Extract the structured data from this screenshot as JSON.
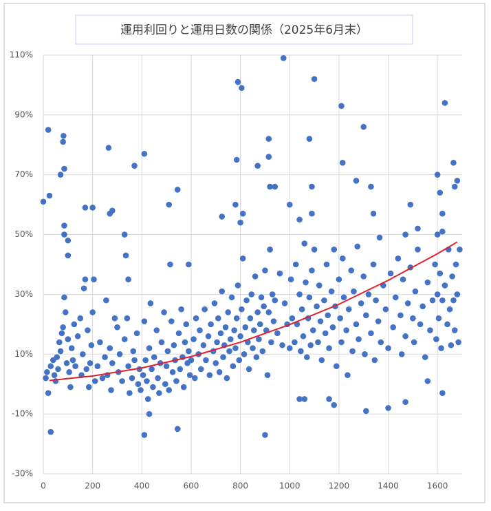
{
  "chart_data": {
    "type": "scatter",
    "title": "運用利回りと運用日数の関係（2025年6月末）",
    "xlim": [
      0,
      1700
    ],
    "xticks": [
      0,
      200,
      400,
      600,
      800,
      1000,
      1200,
      1400,
      1600
    ],
    "ylim": [
      -30,
      110
    ],
    "yticks": [
      {
        "value": -30,
        "label": "-30%"
      },
      {
        "value": -10,
        "label": "-10%"
      },
      {
        "value": 10,
        "label": "10%"
      },
      {
        "value": 30,
        "label": "30%"
      },
      {
        "value": 50,
        "label": "50%"
      },
      {
        "value": 70,
        "label": "70%"
      },
      {
        "value": 90,
        "label": "90%"
      },
      {
        "value": 110,
        "label": "110%"
      }
    ],
    "grid": true,
    "series": [
      {
        "color": "#4472c4",
        "style": "points",
        "x": [
          0,
          20,
          25,
          30,
          70,
          80,
          82,
          85,
          85,
          85,
          100,
          100,
          170,
          200,
          265,
          270,
          280,
          330,
          335,
          345,
          370,
          410,
          410,
          430,
          510,
          545,
          545,
          515,
          590,
          725,
          780,
          785,
          790,
          805,
          800,
          810,
          870,
          900,
          915,
          915,
          920,
          940,
          920,
          1000,
          975,
          1040,
          1080,
          1090,
          1090,
          1100,
          1210,
          1215,
          1270,
          1300,
          1330,
          1340,
          1400,
          1470,
          1490,
          1520,
          1560,
          1600,
          1610,
          1620,
          1620,
          1630,
          1665,
          1670,
          1680,
          1690,
          1310,
          1180,
          1160,
          1060,
          1040,
          1470,
          1600,
          1620,
          10,
          15,
          20,
          30,
          40,
          45,
          50,
          55,
          60,
          65,
          70,
          75,
          80,
          85,
          90,
          95,
          100,
          105,
          110,
          115,
          120,
          125,
          130,
          140,
          150,
          155,
          160,
          165,
          170,
          175,
          180,
          185,
          190,
          195,
          200,
          205,
          210,
          220,
          230,
          240,
          250,
          255,
          260,
          270,
          275,
          280,
          290,
          300,
          305,
          310,
          320,
          330,
          340,
          345,
          350,
          360,
          365,
          370,
          380,
          385,
          390,
          395,
          405,
          410,
          415,
          420,
          425,
          430,
          435,
          440,
          445,
          450,
          460,
          465,
          470,
          475,
          480,
          490,
          495,
          500,
          505,
          510,
          520,
          525,
          530,
          535,
          540,
          550,
          555,
          560,
          565,
          570,
          575,
          580,
          585,
          590,
          595,
          600,
          610,
          615,
          620,
          630,
          635,
          640,
          650,
          655,
          660,
          670,
          675,
          680,
          690,
          695,
          700,
          705,
          710,
          715,
          720,
          725,
          730,
          735,
          740,
          745,
          750,
          755,
          760,
          765,
          770,
          775,
          780,
          785,
          790,
          795,
          800,
          805,
          810,
          815,
          820,
          825,
          830,
          835,
          840,
          845,
          850,
          855,
          860,
          865,
          870,
          875,
          880,
          885,
          890,
          895,
          900,
          905,
          910,
          915,
          920,
          925,
          930,
          935,
          940,
          950,
          960,
          970,
          980,
          990,
          1000,
          1005,
          1010,
          1020,
          1025,
          1030,
          1040,
          1045,
          1050,
          1055,
          1060,
          1065,
          1070,
          1075,
          1080,
          1085,
          1090,
          1095,
          1100,
          1110,
          1115,
          1120,
          1125,
          1130,
          1140,
          1145,
          1150,
          1155,
          1160,
          1170,
          1175,
          1180,
          1185,
          1190,
          1200,
          1205,
          1210,
          1215,
          1220,
          1230,
          1235,
          1240,
          1250,
          1255,
          1260,
          1270,
          1275,
          1280,
          1290,
          1300,
          1305,
          1310,
          1320,
          1330,
          1340,
          1345,
          1350,
          1360,
          1365,
          1370,
          1380,
          1390,
          1400,
          1410,
          1420,
          1430,
          1440,
          1450,
          1455,
          1460,
          1470,
          1480,
          1490,
          1500,
          1505,
          1510,
          1520,
          1530,
          1540,
          1550,
          1560,
          1570,
          1580,
          1590,
          1595,
          1600,
          1605,
          1610,
          1615,
          1620,
          1630,
          1640,
          1645,
          1650,
          1655,
          1660,
          1665,
          1670,
          1675,
          1680,
          1685
        ],
        "values": [
          61,
          85,
          63,
          -16,
          70,
          81,
          83,
          72,
          53,
          50,
          48,
          43,
          59,
          59,
          79,
          57,
          58,
          50,
          43,
          35,
          73,
          77,
          -17,
          -10,
          60,
          65,
          -15,
          40,
          40,
          56,
          60,
          75,
          101,
          99,
          54,
          57,
          73,
          -17,
          82,
          76,
          66,
          66,
          45,
          60,
          109,
          55,
          82,
          66,
          57,
          102,
          93,
          74,
          68,
          86,
          66,
          57,
          -8,
          50,
          60,
          52,
          1,
          70,
          64,
          57,
          -3,
          94,
          74,
          66,
          68,
          45,
          -9,
          -7,
          -5,
          -5,
          -5,
          -6,
          50,
          51,
          2,
          4,
          -3,
          6,
          8,
          3,
          1,
          9,
          5,
          14,
          11,
          17,
          19,
          29,
          24,
          7,
          15,
          4,
          -1,
          12,
          8,
          20,
          6,
          16,
          22,
          3,
          10,
          32,
          35,
          5,
          18,
          -1,
          7,
          13,
          24,
          35,
          1,
          6,
          14,
          2,
          9,
          28,
          3,
          12,
          -2,
          7,
          22,
          19,
          4,
          10,
          1,
          15,
          22,
          6,
          -3,
          2,
          11,
          8,
          17,
          0,
          5,
          -2,
          3,
          21,
          8,
          1,
          -5,
          12,
          27,
          5,
          -1,
          9,
          18,
          2,
          -3,
          7,
          14,
          24,
          0,
          6,
          11,
          -2,
          21,
          4,
          13,
          8,
          1,
          17,
          5,
          25,
          9,
          -1,
          14,
          20,
          7,
          11,
          3,
          8,
          15,
          2,
          22,
          10,
          18,
          5,
          13,
          25,
          8,
          16,
          3,
          20,
          11,
          27,
          7,
          14,
          22,
          4,
          17,
          31,
          9,
          13,
          19,
          2,
          24,
          11,
          15,
          29,
          6,
          18,
          12,
          22,
          33,
          8,
          16,
          25,
          42,
          10,
          19,
          28,
          14,
          5,
          22,
          30,
          12,
          18,
          36,
          9,
          24,
          15,
          20,
          29,
          11,
          26,
          38,
          18,
          3,
          24,
          45,
          14,
          30,
          21,
          28,
          17,
          37,
          13,
          27,
          20,
          12,
          35,
          22,
          14,
          40,
          20,
          30,
          11,
          25,
          16,
          47,
          34,
          9,
          22,
          29,
          13,
          38,
          18,
          45,
          26,
          14,
          33,
          21,
          8,
          28,
          17,
          40,
          23,
          12,
          31,
          19,
          45,
          26,
          6,
          35,
          22,
          14,
          42,
          29,
          18,
          3,
          25,
          38,
          11,
          31,
          20,
          46,
          15,
          27,
          36,
          10,
          23,
          30,
          17,
          40,
          8,
          28,
          21,
          49,
          14,
          33,
          25,
          12,
          37,
          19,
          29,
          42,
          23,
          10,
          35,
          16,
          27,
          39,
          22,
          14,
          31,
          45,
          20,
          26,
          9,
          34,
          18,
          28,
          40,
          15,
          30,
          22,
          37,
          12,
          28,
          33,
          20,
          45,
          25,
          13,
          36,
          28,
          18,
          40,
          30,
          14
        ]
      },
      {
        "color": "#e0202a",
        "style": "line",
        "x": [
          25,
          200,
          400,
          600,
          800,
          1000,
          1200,
          1400,
          1600,
          1680
        ],
        "values": [
          1.2,
          2.7,
          5.4,
          9.2,
          14,
          19.9,
          26.7,
          34.7,
          43.6,
          47.5
        ]
      }
    ]
  }
}
